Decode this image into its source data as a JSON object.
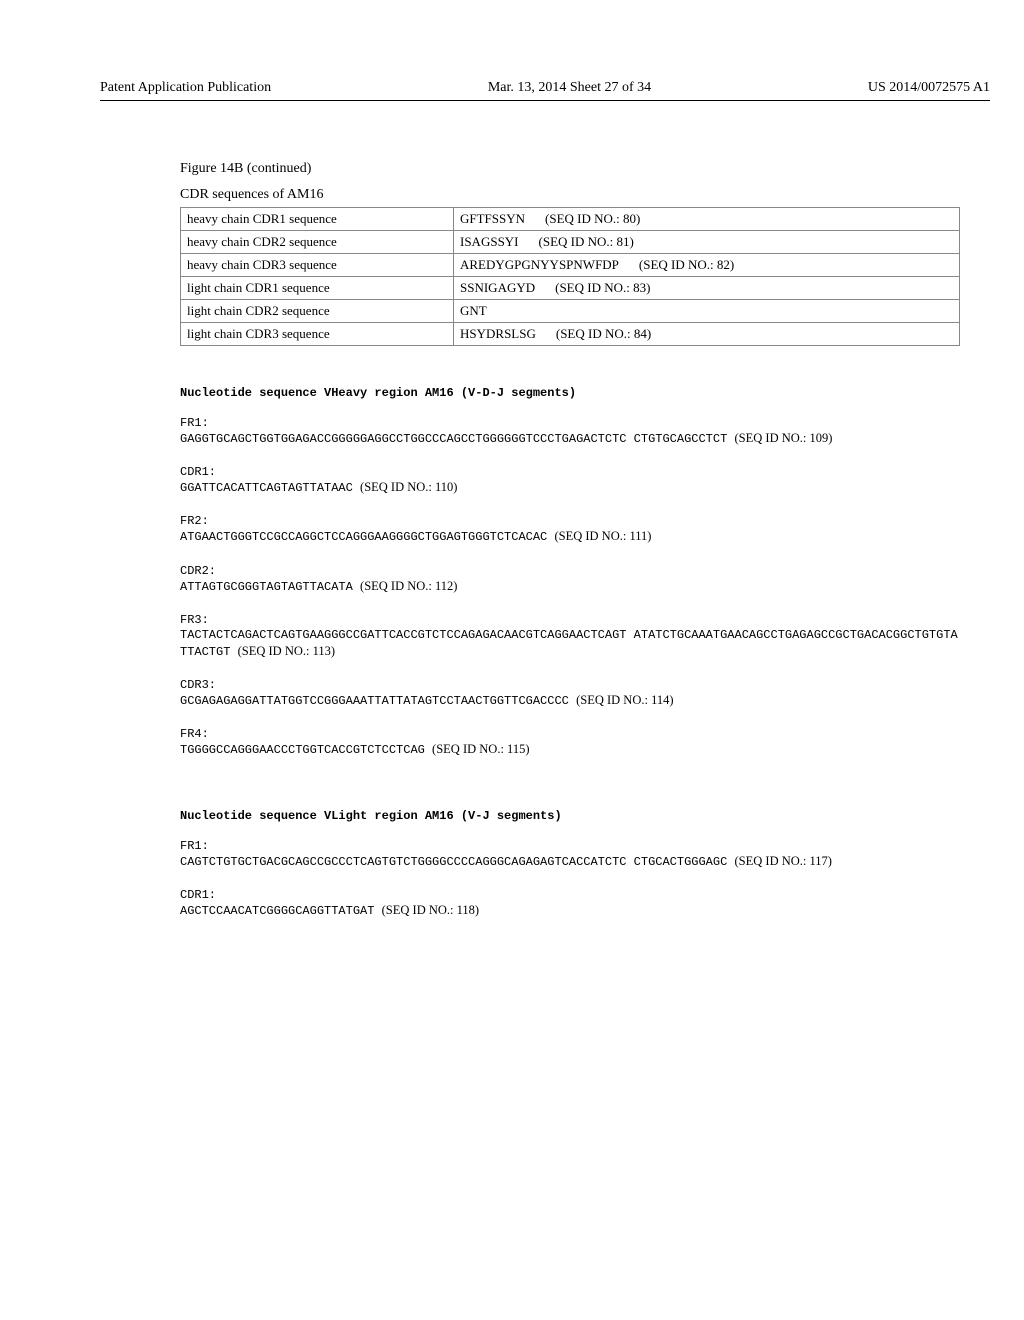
{
  "header": {
    "left": "Patent Application Publication",
    "mid": "Mar. 13, 2014  Sheet 27 of 34",
    "right": "US 2014/0072575 A1"
  },
  "figure_caption": "Figure 14B (continued)",
  "cdr_table": {
    "title": "CDR sequences of AM16",
    "rows": [
      {
        "label": "heavy chain CDR1 sequence",
        "seq": "GFTFSSYN",
        "seqid": "(SEQ ID NO.: 80)"
      },
      {
        "label": "heavy chain CDR2 sequence",
        "seq": "ISAGSSYI",
        "seqid": "(SEQ ID NO.: 81)"
      },
      {
        "label": "heavy chain CDR3 sequence",
        "seq": "AREDYGPGNYYSPNWFDP",
        "seqid": "(SEQ ID NO.: 82)"
      },
      {
        "label": "light chain CDR1 sequence",
        "seq": "SSNIGAGYD",
        "seqid": "(SEQ ID NO.: 83)"
      },
      {
        "label": "light chain CDR2 sequence",
        "seq": "GNT",
        "seqid": ""
      },
      {
        "label": "light chain CDR3 sequence",
        "seq": "HSYDRSLSG",
        "seqid": "(SEQ ID NO.: 84)"
      }
    ]
  },
  "vheavy": {
    "title": "Nucleotide sequence VHeavy region AM16 (V-D-J segments)",
    "blocks": [
      {
        "label": "FR1:",
        "seq": "GAGGTGCAGCTGGTGGAGACCGGGGGAGGCCTGGCCCAGCCTGGGGGGTCCCTGAGACTCTC CTGTGCAGCCTCT",
        "seqid": "(SEQ ID NO.: 109)"
      },
      {
        "label": "CDR1:",
        "seq": "GGATTCACATTCAGTAGTTATAAC",
        "seqid": "(SEQ ID NO.: 110)"
      },
      {
        "label": "FR2:",
        "seq": "ATGAACTGGGTCCGCCAGGCTCCAGGGAAGGGGCTGGAGTGGGTCTCACAC",
        "seqid": "(SEQ ID NO.: 111)"
      },
      {
        "label": "CDR2:",
        "seq": "ATTAGTGCGGGTAGTAGTTACATA",
        "seqid": "(SEQ ID NO.: 112)"
      },
      {
        "label": "FR3:",
        "seq": "TACTACTCAGACTCAGTGAAGGGCCGATTCACCGTCTCCAGAGACAACGTCAGGAACTCAGT ATATCTGCAAATGAACAGCCTGAGAGCCGCTGACACGGCTGTGTATTACTGT",
        "seqid": "(SEQ ID NO.: 113)"
      },
      {
        "label": "CDR3:",
        "seq": "GCGAGAGAGGATTATGGTCCGGGAAATTATTATAGTCCTAACTGGTTCGACCCC",
        "seqid": "(SEQ ID NO.: 114)"
      },
      {
        "label": "FR4:",
        "seq": "TGGGGCCAGGGAACCCTGGTCACCGTCTCCTCAG",
        "seqid": "(SEQ ID NO.: 115)"
      }
    ]
  },
  "vlight": {
    "title": "Nucleotide sequence VLight region AM16 (V-J segments)",
    "blocks": [
      {
        "label": "FR1:",
        "seq": "CAGTCTGTGCTGACGCAGCCGCCCTCAGTGTCTGGGGCCCCAGGGCAGAGAGTCACCATCTC CTGCACTGGGAGC",
        "seqid": "(SEQ ID NO.: 117)"
      },
      {
        "label": "CDR1:",
        "seq": "AGCTCCAACATCGGGGCAGGTTATGAT",
        "seqid": "(SEQ ID NO.: 118)"
      }
    ]
  }
}
